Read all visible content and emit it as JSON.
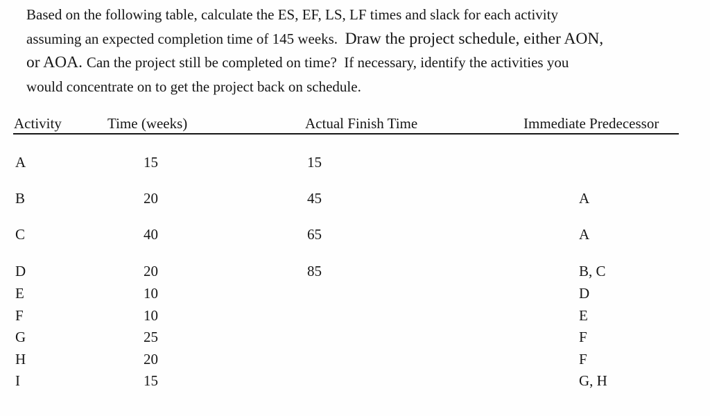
{
  "page": {
    "background_color": "#fefefe",
    "text_color": "#161616"
  },
  "paragraph": {
    "line1": "Based on the following table, calculate the ES, EF, LS, LF times and slack for each activity",
    "line2_normal": "assuming an expected completion time of 145 weeks.  ",
    "line2_large": "Draw the project schedule, either AON,",
    "line3_large": "or AOA. ",
    "line3_normal": "Can the project still be completed on time?  If necessary, identify the activities you",
    "line4": "would concentrate on to get the project back on schedule."
  },
  "table": {
    "headers": [
      "Activity",
      "Time (weeks)",
      "Actual Finish Time",
      "Immediate Predecessor"
    ],
    "rows": [
      {
        "activity": "A",
        "time": "15",
        "actual_finish": "15",
        "predecessor": ""
      },
      {
        "activity": "B",
        "time": "20",
        "actual_finish": "45",
        "predecessor": "A"
      },
      {
        "activity": "C",
        "time": "40",
        "actual_finish": "65",
        "predecessor": "A"
      },
      {
        "activity": "D",
        "time": "20",
        "actual_finish": "85",
        "predecessor": "B, C"
      },
      {
        "activity": "E",
        "time": "10",
        "actual_finish": "",
        "predecessor": "D"
      },
      {
        "activity": "F",
        "time": "10",
        "actual_finish": "",
        "predecessor": "E"
      },
      {
        "activity": "G",
        "time": "25",
        "actual_finish": "",
        "predecessor": "F"
      },
      {
        "activity": "H",
        "time": "20",
        "actual_finish": "",
        "predecessor": "F"
      },
      {
        "activity": "I",
        "time": "15",
        "actual_finish": "",
        "predecessor": "G, H"
      }
    ]
  }
}
